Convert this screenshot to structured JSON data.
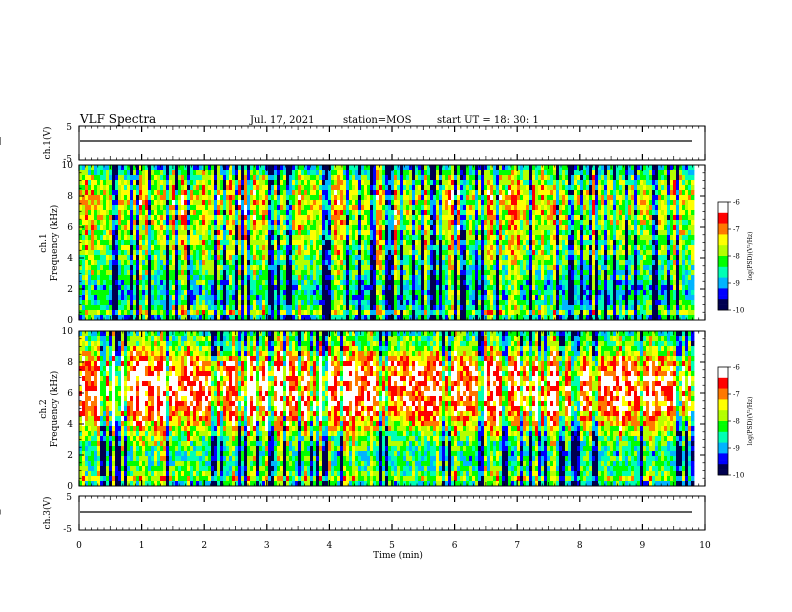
{
  "header": {
    "title": "VLF Spectra",
    "date": "Jul. 17, 2021",
    "station": "station=MOS",
    "start": "start UT =  18: 30: 1"
  },
  "colors": {
    "scale": [
      "#000050",
      "#0000ff",
      "#00b4ff",
      "#00ffb4",
      "#00ff00",
      "#b4ff00",
      "#ffff00",
      "#ff7800",
      "#ff0000",
      "#ffffff"
    ]
  },
  "chart_data": [
    {
      "type": "line",
      "name": "ch1-waveform",
      "ylabel": "ch.1(V)",
      "ylim": [
        -5,
        5
      ],
      "yticks": [
        "5",
        "-5"
      ],
      "level": -0.3,
      "xlim": [
        0,
        10
      ]
    },
    {
      "type": "heatmap",
      "name": "ch1-spectrogram",
      "ylabel": "ch.1\nFrequency (kHz)",
      "ylim": [
        0,
        10
      ],
      "yticks": [
        "0",
        "2",
        "4",
        "6",
        "8",
        "10"
      ],
      "xlim": [
        0,
        10
      ],
      "data_end_min": 9.85,
      "colorbar": {
        "label": "log(PSD)(V²/Hz)",
        "range": [
          -10,
          -6
        ],
        "ticks": [
          "-6",
          "-7",
          "-8",
          "-9",
          "-10"
        ]
      },
      "profile_khz": [
        0,
        0.5,
        1,
        2,
        3,
        4,
        5,
        6,
        7,
        8,
        8.5,
        9,
        9.5,
        10
      ],
      "profile_level": [
        0.2,
        0.55,
        0.35,
        0.3,
        0.4,
        0.45,
        0.5,
        0.55,
        0.58,
        0.6,
        0.55,
        0.5,
        0.4,
        0.25
      ]
    },
    {
      "type": "heatmap",
      "name": "ch2-spectrogram",
      "ylabel": "ch.2\nFrequency (kHz)",
      "ylim": [
        0,
        10
      ],
      "yticks": [
        "0",
        "2",
        "4",
        "6",
        "8",
        "10"
      ],
      "xlim": [
        0,
        10
      ],
      "data_end_min": 9.85,
      "colorbar": {
        "label": "log(PSD)(V²/Hz)",
        "range": [
          -10,
          -6
        ],
        "ticks": [
          "-6",
          "-7",
          "-8",
          "-9",
          "-10"
        ]
      },
      "profile_khz": [
        0,
        0.5,
        1,
        2,
        3,
        4,
        5,
        6,
        7,
        8,
        8.5,
        9,
        9.5,
        10
      ],
      "profile_level": [
        0.25,
        0.55,
        0.4,
        0.35,
        0.45,
        0.65,
        0.8,
        0.85,
        0.85,
        0.75,
        0.6,
        0.5,
        0.45,
        0.35
      ]
    },
    {
      "type": "line",
      "name": "ch3-waveform",
      "ylabel": "ch.3(V)",
      "ylim": [
        -5,
        5
      ],
      "yticks": [
        "5",
        "-5"
      ],
      "level": -0.5,
      "xlim": [
        0,
        10
      ],
      "xlabel": "Time (min)",
      "xticks": [
        "0",
        "1",
        "2",
        "3",
        "4",
        "5",
        "6",
        "7",
        "8",
        "9",
        "10"
      ]
    }
  ]
}
